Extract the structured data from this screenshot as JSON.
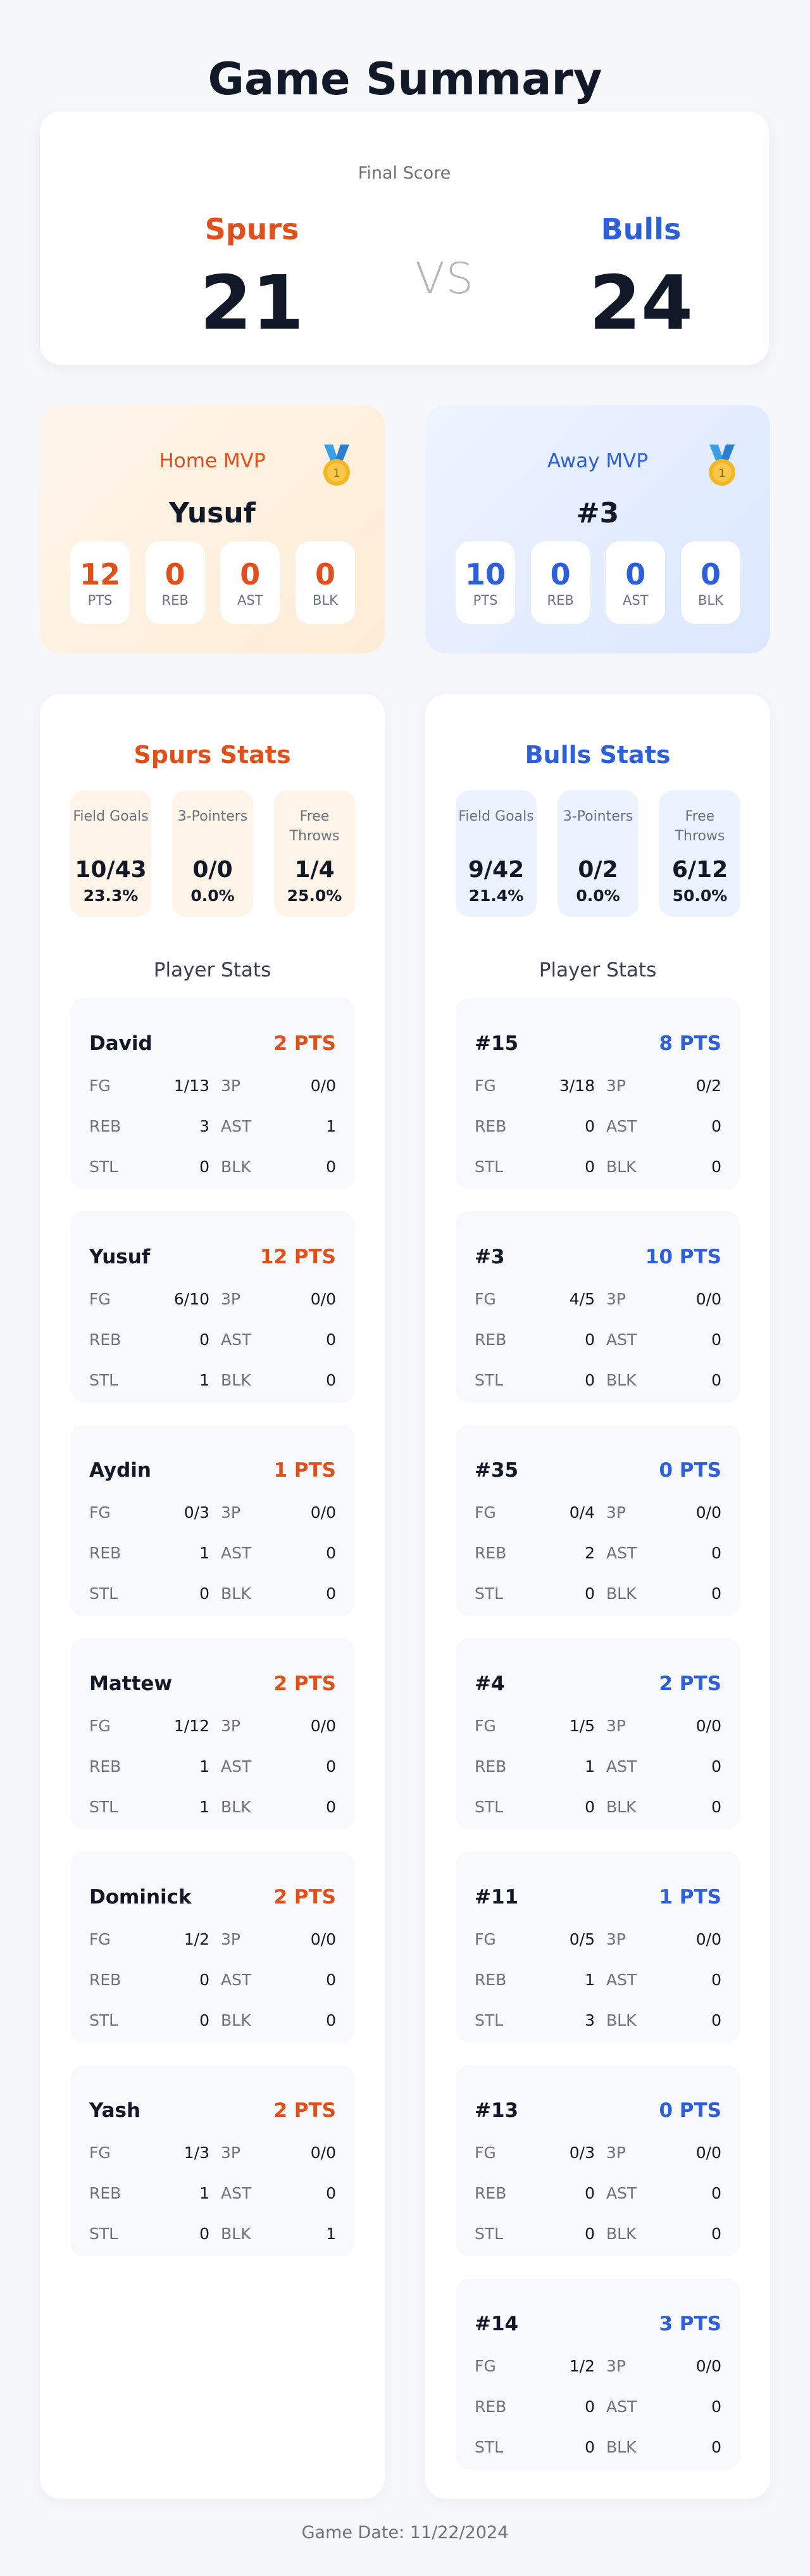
{
  "page": {
    "title": "Game Summary",
    "footer": "Game Date: 11/22/2024"
  },
  "colors": {
    "home": "#e1501b",
    "away": "#2c5fd9"
  },
  "score": {
    "label": "Final Score",
    "vs": "VS",
    "home": {
      "name": "Spurs",
      "score": "21"
    },
    "away": {
      "name": "Bulls",
      "score": "24"
    }
  },
  "mvp": {
    "home": {
      "label": "Home MVP",
      "name": "Yusuf",
      "icon": "medal-icon",
      "stats": [
        {
          "value": "12",
          "label": "PTS"
        },
        {
          "value": "0",
          "label": "REB"
        },
        {
          "value": "0",
          "label": "AST"
        },
        {
          "value": "0",
          "label": "BLK"
        }
      ]
    },
    "away": {
      "label": "Away MVP",
      "name": "#3",
      "icon": "medal-icon",
      "stats": [
        {
          "value": "10",
          "label": "PTS"
        },
        {
          "value": "0",
          "label": "REB"
        },
        {
          "value": "0",
          "label": "AST"
        },
        {
          "value": "0",
          "label": "BLK"
        }
      ]
    }
  },
  "teams": {
    "home": {
      "title": "Spurs Stats",
      "shooting": [
        {
          "label": "Field Goals",
          "value": "10/43",
          "pct": "23.3%"
        },
        {
          "label": "3-Pointers",
          "value": "0/0",
          "pct": "0.0%"
        },
        {
          "label": "Free Throws",
          "value": "1/4",
          "pct": "25.0%"
        }
      ],
      "player_stats_title": "Player Stats",
      "players": [
        {
          "name": "David",
          "pts": "2 PTS",
          "fg": "1/13",
          "tp": "0/0",
          "reb": "3",
          "ast": "1",
          "stl": "0",
          "blk": "0"
        },
        {
          "name": "Yusuf",
          "pts": "12 PTS",
          "fg": "6/10",
          "tp": "0/0",
          "reb": "0",
          "ast": "0",
          "stl": "1",
          "blk": "0"
        },
        {
          "name": "Aydin",
          "pts": "1 PTS",
          "fg": "0/3",
          "tp": "0/0",
          "reb": "1",
          "ast": "0",
          "stl": "0",
          "blk": "0"
        },
        {
          "name": "Mattew",
          "pts": "2 PTS",
          "fg": "1/12",
          "tp": "0/0",
          "reb": "1",
          "ast": "0",
          "stl": "1",
          "blk": "0"
        },
        {
          "name": "Dominick",
          "pts": "2 PTS",
          "fg": "1/2",
          "tp": "0/0",
          "reb": "0",
          "ast": "0",
          "stl": "0",
          "blk": "0"
        },
        {
          "name": "Yash",
          "pts": "2 PTS",
          "fg": "1/3",
          "tp": "0/0",
          "reb": "1",
          "ast": "0",
          "stl": "0",
          "blk": "1"
        }
      ]
    },
    "away": {
      "title": "Bulls Stats",
      "shooting": [
        {
          "label": "Field Goals",
          "value": "9/42",
          "pct": "21.4%"
        },
        {
          "label": "3-Pointers",
          "value": "0/2",
          "pct": "0.0%"
        },
        {
          "label": "Free Throws",
          "value": "6/12",
          "pct": "50.0%"
        }
      ],
      "player_stats_title": "Player Stats",
      "players": [
        {
          "name": "#15",
          "pts": "8 PTS",
          "fg": "3/18",
          "tp": "0/2",
          "reb": "0",
          "ast": "0",
          "stl": "0",
          "blk": "0"
        },
        {
          "name": "#3",
          "pts": "10 PTS",
          "fg": "4/5",
          "tp": "0/0",
          "reb": "0",
          "ast": "0",
          "stl": "0",
          "blk": "0"
        },
        {
          "name": "#35",
          "pts": "0 PTS",
          "fg": "0/4",
          "tp": "0/0",
          "reb": "2",
          "ast": "0",
          "stl": "0",
          "blk": "0"
        },
        {
          "name": "#4",
          "pts": "2 PTS",
          "fg": "1/5",
          "tp": "0/0",
          "reb": "1",
          "ast": "0",
          "stl": "0",
          "blk": "0"
        },
        {
          "name": "#11",
          "pts": "1 PTS",
          "fg": "0/5",
          "tp": "0/0",
          "reb": "1",
          "ast": "0",
          "stl": "3",
          "blk": "0"
        },
        {
          "name": "#13",
          "pts": "0 PTS",
          "fg": "0/3",
          "tp": "0/0",
          "reb": "0",
          "ast": "0",
          "stl": "0",
          "blk": "0"
        },
        {
          "name": "#14",
          "pts": "3 PTS",
          "fg": "1/2",
          "tp": "0/0",
          "reb": "0",
          "ast": "0",
          "stl": "0",
          "blk": "0"
        }
      ]
    }
  },
  "labels": {
    "fg": "FG",
    "tp": "3P",
    "reb": "REB",
    "ast": "AST",
    "stl": "STL",
    "blk": "BLK"
  }
}
